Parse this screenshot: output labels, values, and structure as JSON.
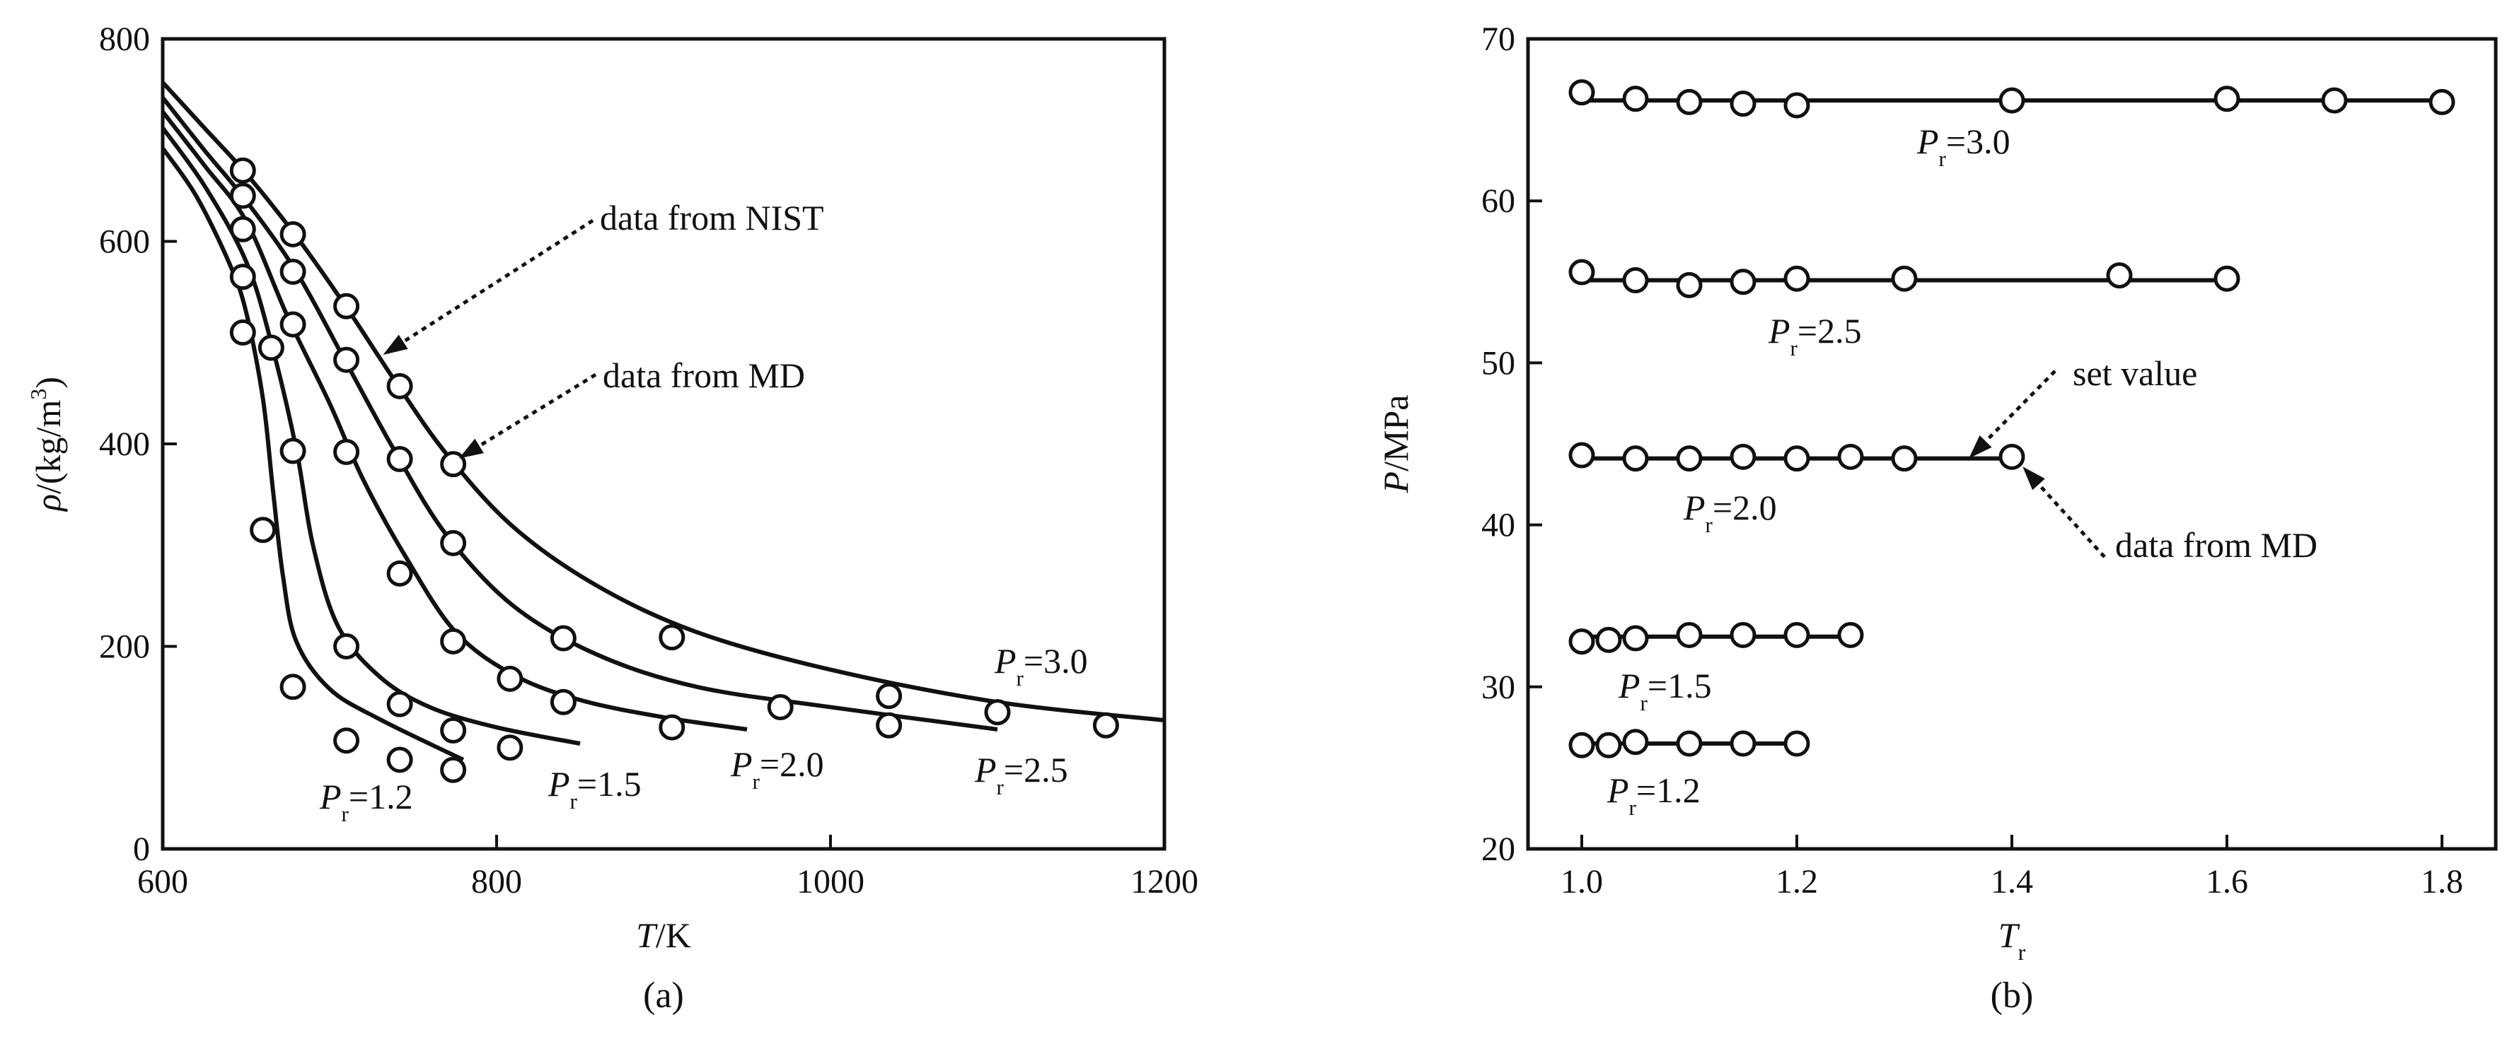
{
  "chart_data": [
    {
      "id": "a",
      "type": "line",
      "panel_label": "(a)",
      "xlabel": {
        "main": "T",
        "rest": "/K"
      },
      "ylabel": {
        "symbol": "ρ",
        "rest": "/(kg/m",
        "sup": "3",
        "close": ")"
      },
      "xlim": [
        600,
        1200
      ],
      "ylim": [
        0,
        800
      ],
      "xticks": [
        600,
        800,
        1000,
        1200
      ],
      "yticks": [
        0,
        200,
        400,
        600,
        800
      ],
      "series": [
        {
          "name": "P_r=1.2",
          "label": {
            "symbol": "P",
            "sub": "r",
            "value": "=1.2"
          },
          "curve": [
            [
              600,
              692
            ],
            [
              620,
              645
            ],
            [
              640,
              578
            ],
            [
              650,
              530
            ],
            [
              660,
              445
            ],
            [
              666,
              355
            ],
            [
              672,
              270
            ],
            [
              680,
              205
            ],
            [
              700,
              158
            ],
            [
              730,
              128
            ],
            [
              780,
              88
            ]
          ],
          "points": [
            [
              648,
              510
            ],
            [
              660,
              315
            ],
            [
              678,
              160
            ],
            [
              710,
              107
            ],
            [
              742,
              88
            ],
            [
              774,
              78
            ]
          ]
        },
        {
          "name": "P_r=1.5",
          "label": {
            "symbol": "P",
            "sub": "r",
            "value": "=1.5"
          },
          "curve": [
            [
              600,
              712
            ],
            [
              625,
              655
            ],
            [
              650,
              580
            ],
            [
              665,
              500
            ],
            [
              680,
              395
            ],
            [
              690,
              300
            ],
            [
              705,
              220
            ],
            [
              730,
              170
            ],
            [
              760,
              140
            ],
            [
              800,
              120
            ],
            [
              850,
              104
            ]
          ],
          "points": [
            [
              648,
              565
            ],
            [
              665,
              495
            ],
            [
              678,
              393
            ],
            [
              710,
              200
            ],
            [
              742,
              143
            ],
            [
              774,
              117
            ],
            [
              808,
              100
            ]
          ]
        },
        {
          "name": "P_r=2.0",
          "label": {
            "symbol": "P",
            "sub": "r",
            "value": "=2.0"
          },
          "curve": [
            [
              600,
              728
            ],
            [
              625,
              675
            ],
            [
              650,
              620
            ],
            [
              675,
              525
            ],
            [
              700,
              440
            ],
            [
              720,
              365
            ],
            [
              745,
              290
            ],
            [
              775,
              215
            ],
            [
              810,
              172
            ],
            [
              850,
              147
            ],
            [
              900,
              130
            ],
            [
              950,
              118
            ]
          ],
          "points": [
            [
              648,
              612
            ],
            [
              678,
              518
            ],
            [
              710,
              392
            ],
            [
              742,
              272
            ],
            [
              774,
              205
            ],
            [
              808,
              168
            ],
            [
              840,
              145
            ],
            [
              905,
              120
            ]
          ]
        },
        {
          "name": "P_r=2.5",
          "label": {
            "symbol": "P",
            "sub": "r",
            "value": "=2.5"
          },
          "curve": [
            [
              600,
              742
            ],
            [
              625,
              690
            ],
            [
              650,
              640
            ],
            [
              680,
              570
            ],
            [
              710,
              480
            ],
            [
              740,
              390
            ],
            [
              770,
              310
            ],
            [
              810,
              240
            ],
            [
              860,
              192
            ],
            [
              920,
              160
            ],
            [
              1000,
              140
            ],
            [
              1100,
              118
            ]
          ],
          "points": [
            [
              648,
              645
            ],
            [
              678,
              570
            ],
            [
              710,
              483
            ],
            [
              742,
              385
            ],
            [
              774,
              302
            ],
            [
              840,
              208
            ],
            [
              970,
              140
            ],
            [
              1035,
              122
            ]
          ]
        },
        {
          "name": "P_r=3.0",
          "label": {
            "symbol": "P",
            "sub": "r",
            "value": "=3.0"
          },
          "curve": [
            [
              600,
              757
            ],
            [
              625,
              712
            ],
            [
              650,
              667
            ],
            [
              680,
              605
            ],
            [
              710,
              535
            ],
            [
              740,
              460
            ],
            [
              770,
              390
            ],
            [
              810,
              318
            ],
            [
              860,
              260
            ],
            [
              920,
              214
            ],
            [
              1000,
              177
            ],
            [
              1100,
              145
            ],
            [
              1200,
              127
            ]
          ],
          "points": [
            [
              648,
              670
            ],
            [
              678,
              607
            ],
            [
              710,
              536
            ],
            [
              742,
              457
            ],
            [
              774,
              380
            ],
            [
              905,
              209
            ],
            [
              1035,
              151
            ],
            [
              1100,
              135
            ],
            [
              1165,
              122
            ]
          ]
        }
      ],
      "annotations": [
        {
          "text": "data from NIST",
          "target": [
            732,
            488
          ]
        },
        {
          "text": "data from MD",
          "target": [
            774,
            380
          ]
        }
      ]
    },
    {
      "id": "b",
      "type": "scatter",
      "panel_label": "(b)",
      "xlabel": {
        "main": "T",
        "sub": "r"
      },
      "ylabel": {
        "main": "P",
        "rest": "/MPa"
      },
      "xlim": [
        0.95,
        1.85
      ],
      "ylim": [
        20,
        70
      ],
      "xticks": [
        1.0,
        1.2,
        1.4,
        1.6,
        1.8
      ],
      "yticks": [
        20,
        30,
        40,
        50,
        60,
        70
      ],
      "series": [
        {
          "name": "P_r=3.0",
          "label": {
            "symbol": "P",
            "sub": "r",
            "value": "=3.0"
          },
          "set_value": 66.2,
          "line_x": [
            1.0,
            1.8
          ],
          "points": [
            [
              1.0,
              66.7
            ],
            [
              1.05,
              66.3
            ],
            [
              1.1,
              66.1
            ],
            [
              1.15,
              66.0
            ],
            [
              1.2,
              65.9
            ],
            [
              1.4,
              66.2
            ],
            [
              1.6,
              66.3
            ],
            [
              1.7,
              66.2
            ],
            [
              1.8,
              66.1
            ]
          ]
        },
        {
          "name": "P_r=2.5",
          "label": {
            "symbol": "P",
            "sub": "r",
            "value": "=2.5"
          },
          "set_value": 55.1,
          "line_x": [
            1.0,
            1.6
          ],
          "points": [
            [
              1.0,
              55.6
            ],
            [
              1.05,
              55.1
            ],
            [
              1.1,
              54.8
            ],
            [
              1.15,
              55.0
            ],
            [
              1.2,
              55.2
            ],
            [
              1.3,
              55.2
            ],
            [
              1.5,
              55.4
            ],
            [
              1.6,
              55.2
            ]
          ]
        },
        {
          "name": "P_r=2.0",
          "label": {
            "symbol": "P",
            "sub": "r",
            "value": "=2.0"
          },
          "set_value": 44.1,
          "line_x": [
            1.0,
            1.4
          ],
          "points": [
            [
              1.0,
              44.3
            ],
            [
              1.05,
              44.1
            ],
            [
              1.1,
              44.1
            ],
            [
              1.15,
              44.2
            ],
            [
              1.2,
              44.1
            ],
            [
              1.25,
              44.2
            ],
            [
              1.3,
              44.1
            ],
            [
              1.4,
              44.2
            ]
          ]
        },
        {
          "name": "P_r=1.5",
          "label": {
            "symbol": "P",
            "sub": "r",
            "value": "=1.5"
          },
          "set_value": 33.1,
          "line_x": [
            1.0,
            1.25
          ],
          "points": [
            [
              1.0,
              32.8
            ],
            [
              1.025,
              32.9
            ],
            [
              1.05,
              33.0
            ],
            [
              1.1,
              33.2
            ],
            [
              1.15,
              33.2
            ],
            [
              1.2,
              33.2
            ],
            [
              1.25,
              33.2
            ]
          ]
        },
        {
          "name": "P_r=1.2",
          "label": {
            "symbol": "P",
            "sub": "r",
            "value": "=1.2"
          },
          "set_value": 26.5,
          "line_x": [
            1.0,
            1.2
          ],
          "points": [
            [
              1.0,
              26.4
            ],
            [
              1.025,
              26.4
            ],
            [
              1.05,
              26.6
            ],
            [
              1.1,
              26.5
            ],
            [
              1.15,
              26.5
            ],
            [
              1.2,
              26.5
            ]
          ]
        }
      ],
      "annotations": [
        {
          "text": "set value",
          "target": [
            1.36,
            44.1
          ]
        },
        {
          "text": "data from MD",
          "target": [
            1.41,
            43.6
          ]
        }
      ]
    }
  ]
}
